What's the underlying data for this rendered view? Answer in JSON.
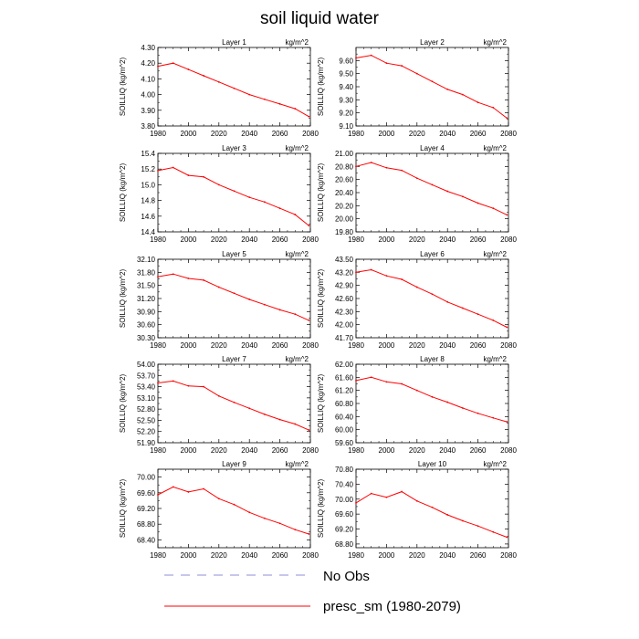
{
  "title": "soil liquid water",
  "legend": [
    {
      "label": "No Obs",
      "color": "#8f8fd9",
      "dash": "dashed"
    },
    {
      "label": "presc_sm (1980-2079)",
      "color": "#ff0000",
      "dash": "solid"
    }
  ],
  "chart_data": [
    {
      "type": "line",
      "title": "Layer 1",
      "units": "kg/m^2",
      "ylabel": "SOILLIQ  (kg/m^2)",
      "xlim": [
        1980,
        2080
      ],
      "xticks": [
        1980,
        2000,
        2020,
        2040,
        2060,
        2080
      ],
      "xtick_labels": [
        "1980",
        "2000",
        "2020",
        "2040",
        "2060",
        "2080"
      ],
      "ylim": [
        3.8,
        4.3
      ],
      "yticks": [
        3.8,
        3.9,
        4.0,
        4.1,
        4.2,
        4.3
      ],
      "ytick_labels": [
        "3.80",
        "3.90",
        "4.00",
        "4.10",
        "4.20",
        "4.30"
      ],
      "series": [
        {
          "name": "presc_sm (1980-2079)",
          "color": "#ff0000",
          "x": [
            1980,
            1990,
            2000,
            2010,
            2020,
            2030,
            2040,
            2050,
            2060,
            2070,
            2079
          ],
          "values": [
            4.18,
            4.2,
            4.16,
            4.12,
            4.08,
            4.04,
            4.0,
            3.97,
            3.94,
            3.91,
            3.86
          ]
        }
      ]
    },
    {
      "type": "line",
      "title": "Layer 2",
      "units": "kg/m^2",
      "ylabel": "SOILLIQ  (kg/m^2)",
      "xlim": [
        1980,
        2080
      ],
      "xticks": [
        1980,
        2000,
        2020,
        2040,
        2060,
        2080
      ],
      "xtick_labels": [
        "1980",
        "2000",
        "2020",
        "2040",
        "2060",
        "2080"
      ],
      "ylim": [
        9.1,
        9.7
      ],
      "yticks": [
        9.1,
        9.2,
        9.3,
        9.4,
        9.5,
        9.6
      ],
      "ytick_labels": [
        "9.10",
        "9.20",
        "9.30",
        "9.40",
        "9.50",
        "9.60"
      ],
      "series": [
        {
          "name": "presc_sm (1980-2079)",
          "color": "#ff0000",
          "x": [
            1980,
            1990,
            2000,
            2010,
            2020,
            2030,
            2040,
            2050,
            2060,
            2070,
            2079
          ],
          "values": [
            9.62,
            9.64,
            9.58,
            9.56,
            9.5,
            9.44,
            9.38,
            9.34,
            9.28,
            9.24,
            9.16
          ]
        }
      ]
    },
    {
      "type": "line",
      "title": "Layer 3",
      "units": "kg/m^2",
      "ylabel": "SOILLIQ  (kg/m^2)",
      "xlim": [
        1980,
        2080
      ],
      "xticks": [
        1980,
        2000,
        2020,
        2040,
        2060,
        2080
      ],
      "xtick_labels": [
        "1980",
        "2000",
        "2020",
        "2040",
        "2060",
        "2080"
      ],
      "ylim": [
        14.4,
        15.4
      ],
      "yticks": [
        14.4,
        14.6,
        14.8,
        15.0,
        15.2,
        15.4
      ],
      "ytick_labels": [
        "14.4",
        "14.6",
        "14.8",
        "15.0",
        "15.2",
        "15.4"
      ],
      "series": [
        {
          "name": "presc_sm (1980-2079)",
          "color": "#ff0000",
          "x": [
            1980,
            1990,
            2000,
            2010,
            2020,
            2030,
            2040,
            2050,
            2060,
            2070,
            2079
          ],
          "values": [
            15.18,
            15.22,
            15.12,
            15.1,
            15.0,
            14.92,
            14.84,
            14.78,
            14.7,
            14.62,
            14.48
          ]
        }
      ]
    },
    {
      "type": "line",
      "title": "Layer 4",
      "units": "kg/m^2",
      "ylabel": "SOILLIQ  (kg/m^2)",
      "xlim": [
        1980,
        2080
      ],
      "xticks": [
        1980,
        2000,
        2020,
        2040,
        2060,
        2080
      ],
      "xtick_labels": [
        "1980",
        "2000",
        "2020",
        "2040",
        "2060",
        "2080"
      ],
      "ylim": [
        19.8,
        21.0
      ],
      "yticks": [
        19.8,
        20.0,
        20.2,
        20.4,
        20.6,
        20.8,
        21.0
      ],
      "ytick_labels": [
        "19.80",
        "20.00",
        "20.20",
        "20.40",
        "20.60",
        "20.80",
        "21.00"
      ],
      "series": [
        {
          "name": "presc_sm (1980-2079)",
          "color": "#ff0000",
          "x": [
            1980,
            1990,
            2000,
            2010,
            2020,
            2030,
            2040,
            2050,
            2060,
            2070,
            2079
          ],
          "values": [
            20.8,
            20.86,
            20.78,
            20.74,
            20.62,
            20.52,
            20.42,
            20.34,
            20.24,
            20.16,
            20.06
          ]
        }
      ]
    },
    {
      "type": "line",
      "title": "Layer 5",
      "units": "kg/m^2",
      "ylabel": "SOILLIQ  (kg/m^2)",
      "xlim": [
        1980,
        2080
      ],
      "xticks": [
        1980,
        2000,
        2020,
        2040,
        2060,
        2080
      ],
      "xtick_labels": [
        "1980",
        "2000",
        "2020",
        "2040",
        "2060",
        "2080"
      ],
      "ylim": [
        30.3,
        32.1
      ],
      "yticks": [
        30.3,
        30.6,
        30.9,
        31.2,
        31.5,
        31.8,
        32.1
      ],
      "ytick_labels": [
        "30.30",
        "30.60",
        "30.90",
        "31.20",
        "31.50",
        "31.80",
        "32.10"
      ],
      "series": [
        {
          "name": "presc_sm (1980-2079)",
          "color": "#ff0000",
          "x": [
            1980,
            1990,
            2000,
            2010,
            2020,
            2030,
            2040,
            2050,
            2060,
            2070,
            2079
          ],
          "values": [
            31.7,
            31.76,
            31.66,
            31.62,
            31.46,
            31.32,
            31.18,
            31.06,
            30.94,
            30.84,
            30.7
          ]
        }
      ]
    },
    {
      "type": "line",
      "title": "Layer 6",
      "units": "kg/m^2",
      "ylabel": "SOILLIQ  (kg/m^2)",
      "xlim": [
        1980,
        2080
      ],
      "xticks": [
        1980,
        2000,
        2020,
        2040,
        2060,
        2080
      ],
      "xtick_labels": [
        "1980",
        "2000",
        "2020",
        "2040",
        "2060",
        "2080"
      ],
      "ylim": [
        41.7,
        43.5
      ],
      "yticks": [
        41.7,
        42.0,
        42.3,
        42.6,
        42.9,
        43.2,
        43.5
      ],
      "ytick_labels": [
        "41.70",
        "42.00",
        "42.30",
        "42.60",
        "42.90",
        "43.20",
        "43.50"
      ],
      "series": [
        {
          "name": "presc_sm (1980-2079)",
          "color": "#ff0000",
          "x": [
            1980,
            1990,
            2000,
            2010,
            2020,
            2030,
            2040,
            2050,
            2060,
            2070,
            2079
          ],
          "values": [
            43.2,
            43.26,
            43.12,
            43.04,
            42.86,
            42.7,
            42.52,
            42.38,
            42.24,
            42.1,
            41.94
          ]
        }
      ]
    },
    {
      "type": "line",
      "title": "Layer 7",
      "units": "kg/m^2",
      "ylabel": "SOILLIQ  (kg/m^2)",
      "xlim": [
        1980,
        2080
      ],
      "xticks": [
        1980,
        2000,
        2020,
        2040,
        2060,
        2080
      ],
      "xtick_labels": [
        "1980",
        "2000",
        "2020",
        "2040",
        "2060",
        "2080"
      ],
      "ylim": [
        51.9,
        54.0
      ],
      "yticks": [
        51.9,
        52.2,
        52.5,
        52.8,
        53.1,
        53.4,
        53.7,
        54.0
      ],
      "ytick_labels": [
        "51.90",
        "52.20",
        "52.50",
        "52.80",
        "53.10",
        "53.40",
        "53.70",
        "54.00"
      ],
      "series": [
        {
          "name": "presc_sm (1980-2079)",
          "color": "#ff0000",
          "x": [
            1980,
            1990,
            2000,
            2010,
            2020,
            2030,
            2040,
            2050,
            2060,
            2070,
            2079
          ],
          "values": [
            53.5,
            53.55,
            53.42,
            53.4,
            53.15,
            52.98,
            52.82,
            52.66,
            52.52,
            52.4,
            52.24
          ]
        }
      ]
    },
    {
      "type": "line",
      "title": "Layer 8",
      "units": "kg/m^2",
      "ylabel": "SOILLIQ  (kg/m^2)",
      "xlim": [
        1980,
        2080
      ],
      "xticks": [
        1980,
        2000,
        2020,
        2040,
        2060,
        2080
      ],
      "xtick_labels": [
        "1980",
        "2000",
        "2020",
        "2040",
        "2060",
        "2080"
      ],
      "ylim": [
        59.6,
        62.0
      ],
      "yticks": [
        59.6,
        60.0,
        60.4,
        60.8,
        61.2,
        61.6,
        62.0
      ],
      "ytick_labels": [
        "59.60",
        "60.00",
        "60.40",
        "60.80",
        "61.20",
        "61.60",
        "62.00"
      ],
      "series": [
        {
          "name": "presc_sm (1980-2079)",
          "color": "#ff0000",
          "x": [
            1980,
            1990,
            2000,
            2010,
            2020,
            2030,
            2040,
            2050,
            2060,
            2070,
            2079
          ],
          "values": [
            61.5,
            61.6,
            61.46,
            61.4,
            61.2,
            61.0,
            60.84,
            60.66,
            60.5,
            60.36,
            60.24
          ]
        }
      ]
    },
    {
      "type": "line",
      "title": "Layer 9",
      "units": "kg/m^2",
      "ylabel": "SOILLIQ  (kg/m^2)",
      "xlim": [
        1980,
        2080
      ],
      "xticks": [
        1980,
        2000,
        2020,
        2040,
        2060,
        2080
      ],
      "xtick_labels": [
        "1980",
        "2000",
        "2020",
        "2040",
        "2060",
        "2080"
      ],
      "ylim": [
        68.2,
        70.2
      ],
      "yticks": [
        68.4,
        68.8,
        69.2,
        69.6,
        70.0
      ],
      "ytick_labels": [
        "68.40",
        "68.80",
        "69.20",
        "69.60",
        "70.00"
      ],
      "series": [
        {
          "name": "presc_sm (1980-2079)",
          "color": "#ff0000",
          "x": [
            1980,
            1990,
            2000,
            2010,
            2020,
            2030,
            2040,
            2050,
            2060,
            2070,
            2079
          ],
          "values": [
            69.55,
            69.75,
            69.62,
            69.7,
            69.45,
            69.3,
            69.1,
            68.95,
            68.82,
            68.66,
            68.55
          ]
        }
      ]
    },
    {
      "type": "line",
      "title": "Layer 10",
      "units": "kg/m^2",
      "ylabel": "SOILLIQ  (kg/m^2)",
      "xlim": [
        1980,
        2080
      ],
      "xticks": [
        1980,
        2000,
        2020,
        2040,
        2060,
        2080
      ],
      "xtick_labels": [
        "1980",
        "2000",
        "2020",
        "2040",
        "2060",
        "2080"
      ],
      "ylim": [
        68.7,
        70.8
      ],
      "yticks": [
        68.8,
        69.2,
        69.6,
        70.0,
        70.4,
        70.8
      ],
      "ytick_labels": [
        "68.80",
        "69.20",
        "69.60",
        "70.00",
        "70.40",
        "70.80"
      ],
      "series": [
        {
          "name": "presc_sm (1980-2079)",
          "color": "#ff0000",
          "x": [
            1980,
            1990,
            2000,
            2010,
            2020,
            2030,
            2040,
            2050,
            2060,
            2070,
            2079
          ],
          "values": [
            69.9,
            70.15,
            70.05,
            70.2,
            69.95,
            69.78,
            69.58,
            69.42,
            69.28,
            69.12,
            68.98
          ]
        }
      ]
    }
  ]
}
